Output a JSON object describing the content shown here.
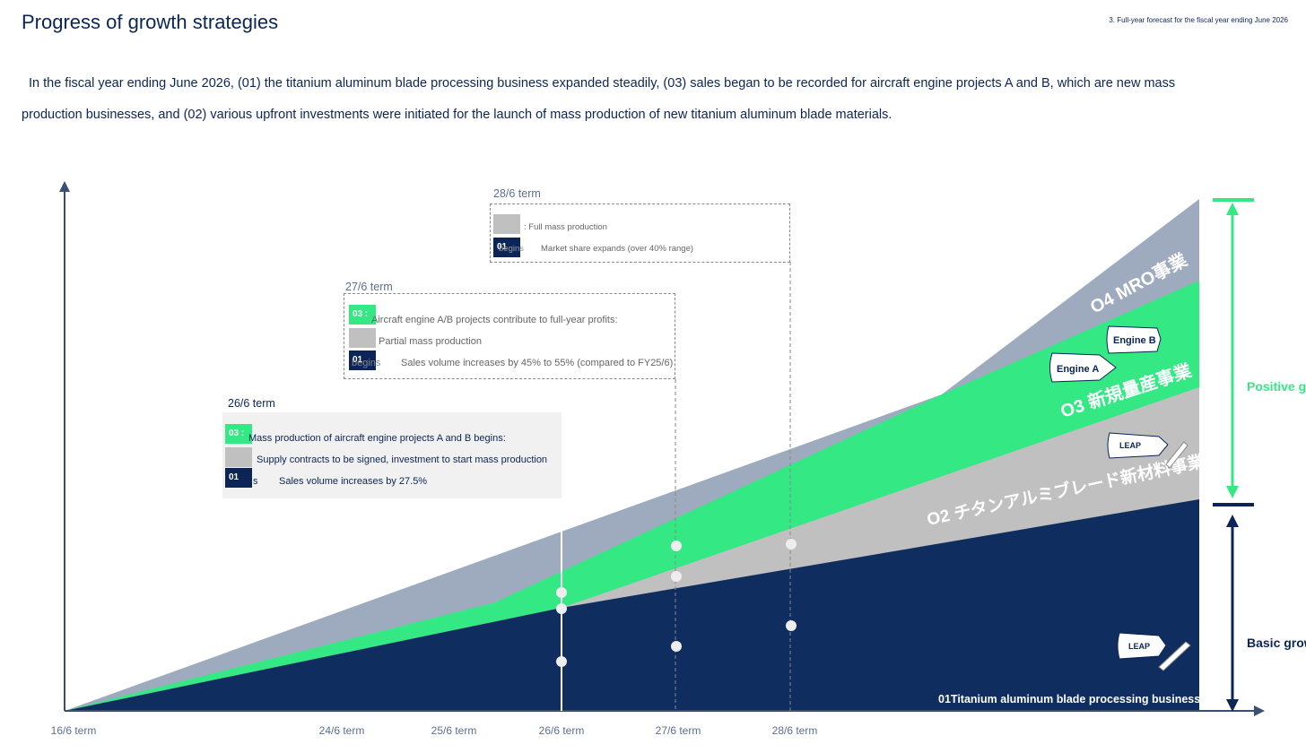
{
  "title": "Progress of growth strategies",
  "footnote": "3. Full-year forecast for the fiscal year ending June 2026",
  "lead": "In the fiscal year ending June 2026, (01) the titanium aluminum blade processing business expanded steadily, (03) sales began to be recorded for aircraft engine projects A and B, which are new mass production businesses, and (02) various upfront investments were initiated for the launch of mass production of new titanium aluminum blade materials.",
  "x_ticks": [
    "16/6 term",
    "24/6 term",
    "25/6 term",
    "26/6 term",
    "27/6 term",
    "28/6 term"
  ],
  "boxes": {
    "b26": {
      "term": "26/6 term",
      "badge_03": "03 :",
      "row1": "Mass production of aircraft engine projects A and B begins:",
      "row2": "Supply contracts to be signed, investment to start mass production",
      "badge_01": "01",
      "row3_prefix": "s",
      "row3": "Sales volume increases by 27.5%"
    },
    "b27": {
      "term": "27/6 term",
      "badge_03": "03 :",
      "row1": "Aircraft engine A/B projects contribute to full-year profits:",
      "row2": "Partial mass production",
      "badge_01": "01",
      "row3_prefix": "begins",
      "row3": "Sales volume increases by 45% to 55% (compared to FY25/6)"
    },
    "b28": {
      "term": "28/6 term",
      "row1": ": Full mass production",
      "badge_01": "01",
      "row2_prefix": "begins",
      "row2": "Market share expands (over 40% range)"
    }
  },
  "layers": {
    "l04": "O4 MRO事業",
    "l03": "O3 新規量産事業",
    "l02": "O2 チタンアルミブレード新材料事業",
    "l01": "01Titanium aluminum blade processing business"
  },
  "engines": {
    "a": "Engine A",
    "b": "Engine B",
    "leap1": "LEAP",
    "leap2": "LEAP"
  },
  "side": {
    "positive": "Positive g",
    "basic": "Basic grow"
  },
  "colors": {
    "navy": "#0b2557",
    "green": "#34e884",
    "gray": "#c0c0c0",
    "slate": "#9eabbf"
  }
}
